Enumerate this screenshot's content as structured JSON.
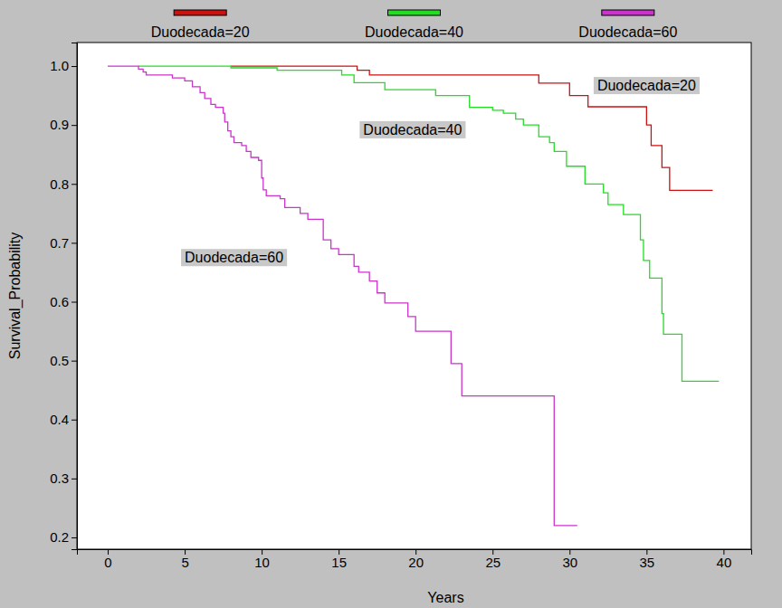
{
  "chart_data": {
    "type": "line",
    "x_label": "Years",
    "y_label": "Survival_Probability",
    "xlim": [
      -2,
      41.8
    ],
    "ylim": [
      0.18,
      1.04
    ],
    "xticks": [
      0,
      5,
      10,
      15,
      20,
      25,
      30,
      35,
      40
    ],
    "yticks": [
      {
        "value": 1.0,
        "label": "1.0"
      },
      0.9,
      0.8,
      0.7,
      0.6,
      0.5,
      0.4,
      0.3,
      0.2
    ],
    "grid": false,
    "legend": "top",
    "line_style": "step",
    "series": [
      {
        "name": "Duodecada=20",
        "color": "#cc1111",
        "x": [
          8,
          16.2,
          17,
          28,
          30,
          31.2,
          35,
          35.3,
          36,
          36.5,
          39.3
        ],
        "values": [
          1.0,
          0.993,
          0.985,
          0.971,
          0.95,
          0.931,
          0.9,
          0.865,
          0.828,
          0.789,
          0.789
        ]
      },
      {
        "name": "Duodecada=40",
        "color": "#22dd22",
        "x": [
          2,
          8,
          11,
          15.2,
          16,
          18,
          21.3,
          23.5,
          25,
          25.7,
          26.5,
          27,
          28,
          28.7,
          29,
          29.8,
          31,
          32.2,
          32.5,
          33.5,
          34.6,
          34.8,
          35.2,
          36.0,
          36.1,
          37.3,
          39.7
        ],
        "values": [
          1.0,
          0.997,
          0.993,
          0.985,
          0.972,
          0.96,
          0.95,
          0.93,
          0.925,
          0.92,
          0.91,
          0.9,
          0.88,
          0.87,
          0.855,
          0.83,
          0.8,
          0.785,
          0.765,
          0.748,
          0.705,
          0.67,
          0.64,
          0.58,
          0.545,
          0.465,
          0.465
        ]
      },
      {
        "name": "Duodecada=60",
        "color": "#cc33cc",
        "x": [
          0,
          2,
          2.3,
          2.5,
          4.2,
          5,
          5.5,
          6,
          6.3,
          6.7,
          7,
          7.5,
          7.6,
          7.8,
          8,
          8.2,
          8.7,
          9,
          9.3,
          9.8,
          10,
          10.1,
          10.3,
          11.2,
          11.5,
          12.5,
          13,
          14,
          14.5,
          15,
          16,
          16.3,
          17,
          17.5,
          18,
          19.5,
          20,
          22.3,
          23,
          29,
          30.5
        ],
        "values": [
          1.0,
          0.995,
          0.99,
          0.985,
          0.98,
          0.975,
          0.965,
          0.955,
          0.945,
          0.935,
          0.93,
          0.92,
          0.905,
          0.89,
          0.88,
          0.87,
          0.865,
          0.855,
          0.845,
          0.84,
          0.81,
          0.79,
          0.78,
          0.775,
          0.76,
          0.75,
          0.74,
          0.705,
          0.69,
          0.68,
          0.66,
          0.65,
          0.635,
          0.615,
          0.598,
          0.575,
          0.55,
          0.495,
          0.44,
          0.22,
          0.22
        ]
      }
    ],
    "annotations": [
      {
        "text": "Duodecada=20",
        "x": 31.8,
        "y": 0.965
      },
      {
        "text": "Duodecada=40",
        "x": 16.6,
        "y": 0.89
      },
      {
        "text": "Duodecada=60",
        "x": 5.0,
        "y": 0.673
      }
    ]
  }
}
